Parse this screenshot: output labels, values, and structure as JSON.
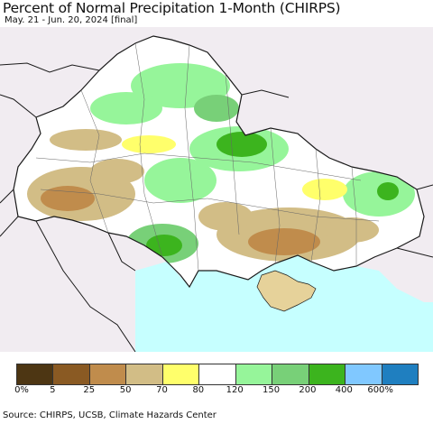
{
  "header": {
    "title": "Percent of Normal Precipitation 1-Month (CHIRPS)",
    "subtitle": "May. 21 - Jun. 20, 2024 [final]"
  },
  "legend": {
    "colors": [
      "#4d3613",
      "#8a5a23",
      "#c08c4c",
      "#d2bd86",
      "#ffff6b",
      "#ffffff",
      "#96f59a",
      "#78d078",
      "#3cb41e",
      "#80c8ff",
      "#1f7fc0"
    ],
    "labels": [
      "0%",
      "5",
      "25",
      "50",
      "70",
      "80",
      "120",
      "150",
      "200",
      "400",
      "600%"
    ]
  },
  "footer": {
    "source": "Source: CHIRPS, UCSB, Climate Hazards Center"
  },
  "map": {
    "sea_color": "#c6ffff",
    "outside_color": "#f1ecf1",
    "border_color": "#1a1a1a"
  }
}
